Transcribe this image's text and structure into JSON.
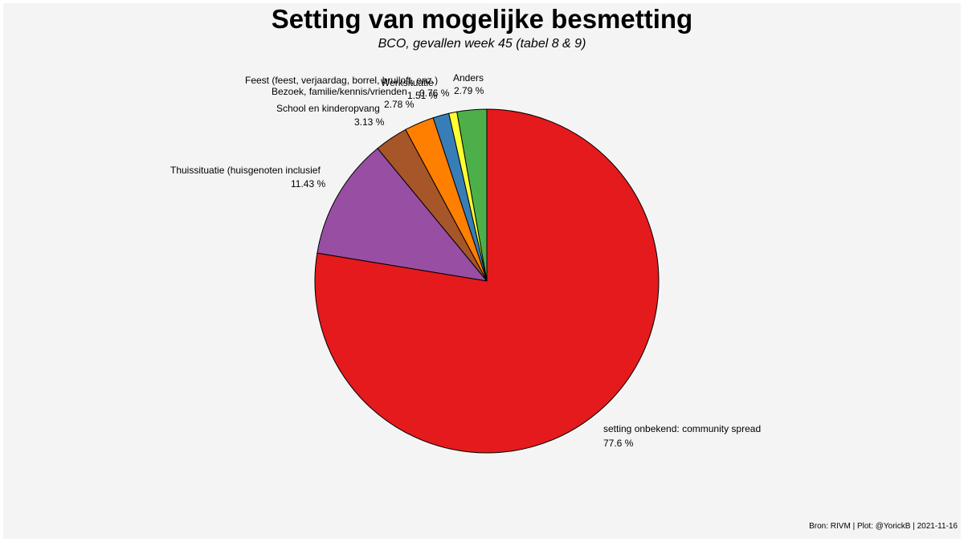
{
  "chart_data": {
    "type": "pie",
    "title": "Setting van mogelijke besmetting",
    "subtitle": "BCO, gevallen week 45  (tabel 8 & 9)",
    "caption": "Bron: RIVM | Plot: @YorickB |  2021-11-16",
    "slices": [
      {
        "label": "Anders",
        "value": 2.79,
        "value_label": "2.79 %",
        "color": "#4daf4a"
      },
      {
        "label": "Feest (feest, verjaardag, borrel, bruiloft, enz.)",
        "value": 0.76,
        "value_label": "0.76 %",
        "color": "#ffff33"
      },
      {
        "label": "Werksituatie",
        "value": 1.51,
        "value_label": "1.51 %",
        "color": "#377eb8"
      },
      {
        "label": "Bezoek, familie/kennis/vrienden",
        "value": 2.78,
        "value_label": "2.78 %",
        "color": "#ff7f00"
      },
      {
        "label": "School en kinderopvang",
        "value": 3.13,
        "value_label": "3.13 %",
        "color": "#a65628"
      },
      {
        "label": "Thuissituatie (huisgenoten inclusief",
        "value": 11.43,
        "value_label": "11.43 %",
        "color": "#984ea3"
      },
      {
        "label": "setting onbekend: community spread",
        "value": 77.6,
        "value_label": "77.6 %",
        "color": "#e41a1c"
      }
    ],
    "direction": "counterclockwise",
    "start": "top",
    "legend": "none"
  }
}
